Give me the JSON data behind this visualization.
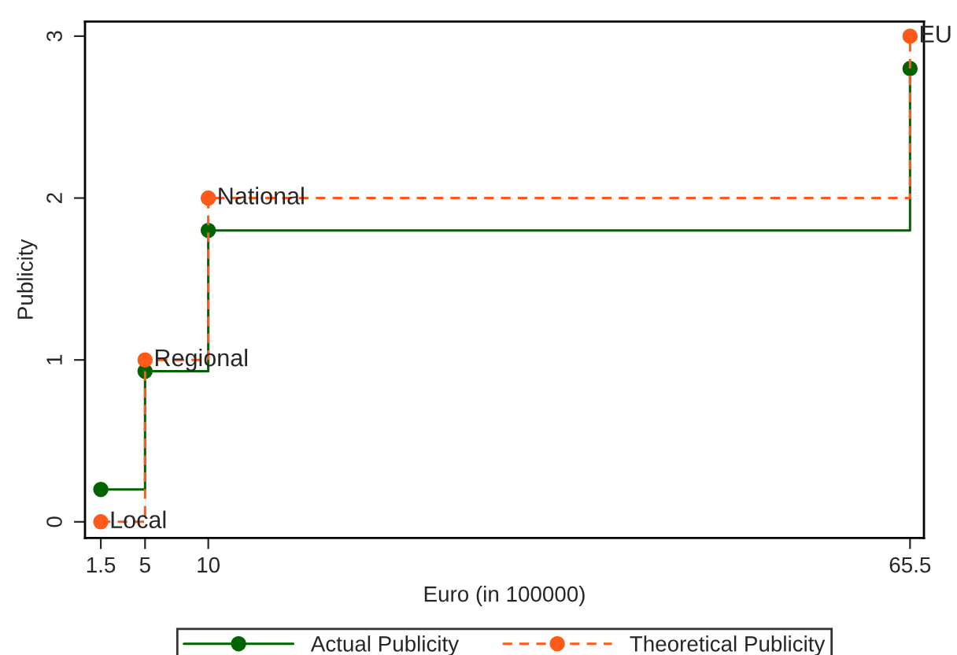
{
  "chart_data": {
    "type": "step",
    "xlabel": "Euro (in 100000)",
    "ylabel": "Publicity",
    "x": [
      1.5,
      5,
      10,
      65.5
    ],
    "series": [
      {
        "name": "Actual Publicity",
        "color": "#006400",
        "values": [
          0.2,
          0.93,
          1.8,
          2.8
        ],
        "line_style": "solid"
      },
      {
        "name": "Theoretical Publicity",
        "color": "#ff5a1a",
        "values": [
          0,
          1,
          2,
          3
        ],
        "line_style": "dashed"
      }
    ],
    "annotations": [
      {
        "text": "Local",
        "x": 1.5,
        "y": 0
      },
      {
        "text": "Regional",
        "x": 5,
        "y": 1
      },
      {
        "text": "National",
        "x": 10,
        "y": 2
      },
      {
        "text": "EU",
        "x": 65.5,
        "y": 3
      }
    ],
    "xlim": [
      0.25,
      66.6
    ],
    "xticks": [
      1.5,
      5,
      10,
      65.5
    ],
    "ylim": [
      -0.1,
      3.09
    ],
    "yticks": [
      0,
      1,
      2,
      3
    ],
    "marker": "circle",
    "grid": false,
    "legend": "bottom"
  }
}
